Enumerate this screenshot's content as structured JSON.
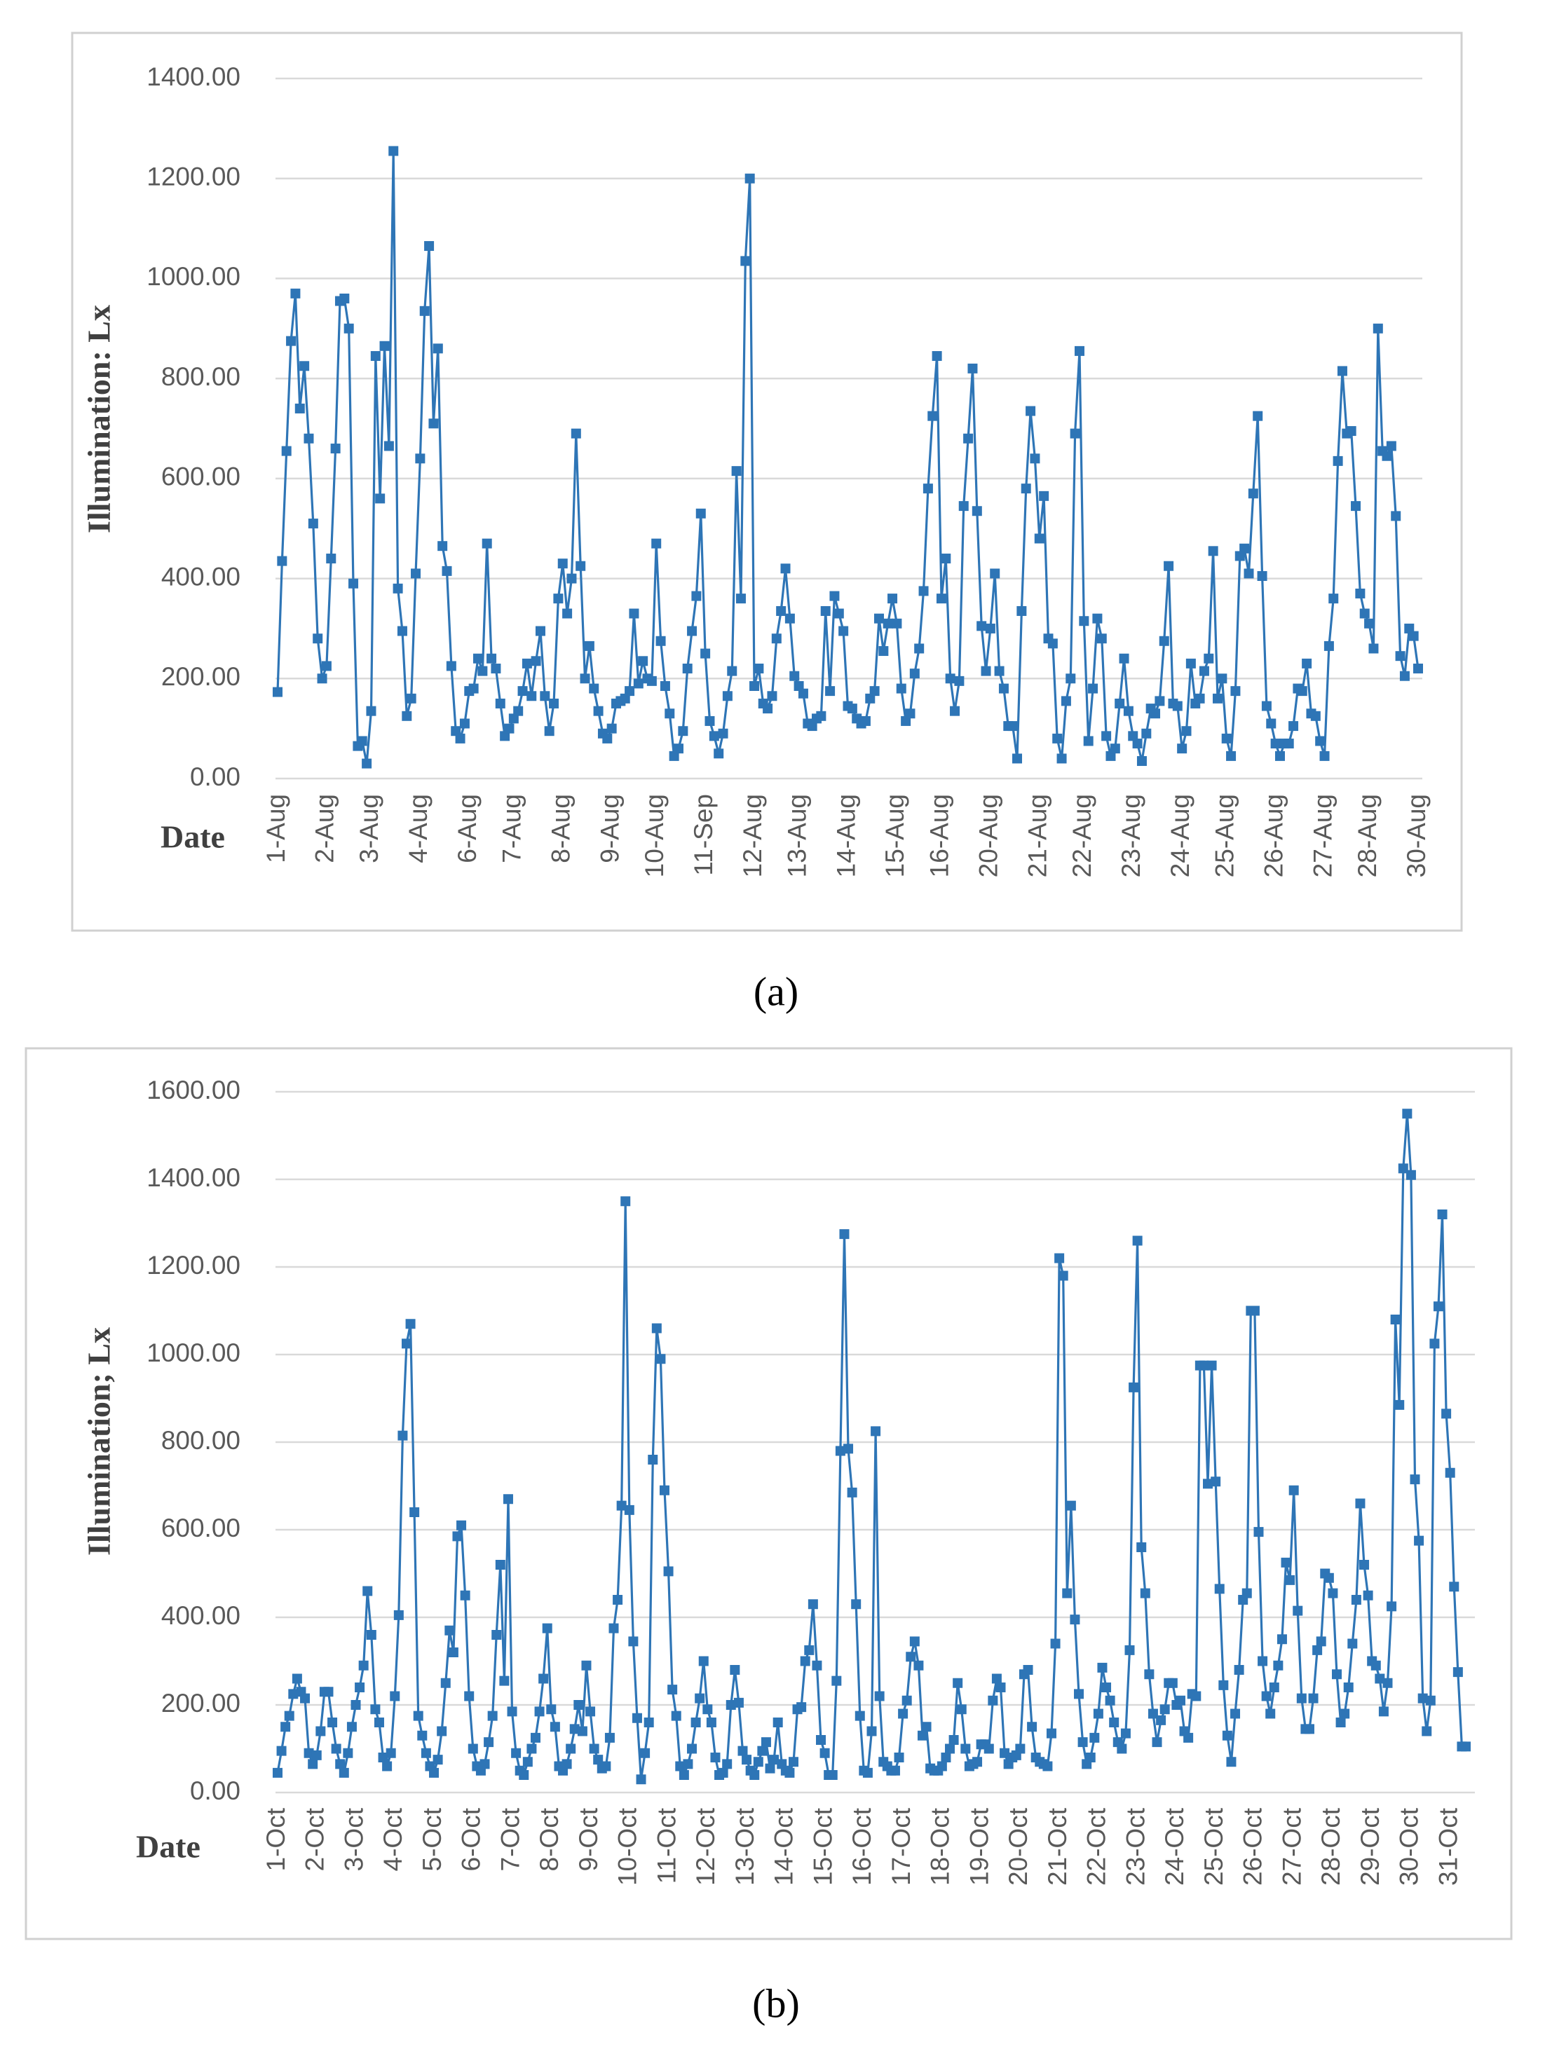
{
  "chart_data": [
    {
      "type": "line",
      "caption": "(a)",
      "ylabel": "Illumination:  Lx",
      "xlabel": "Date",
      "color": "#2e75b6",
      "grid": true,
      "ylim": [
        0,
        1400
      ],
      "yticks": [
        {
          "value": 0,
          "label": "0.00"
        },
        {
          "value": 200,
          "label": "200.00"
        },
        {
          "value": 400,
          "label": "400.00"
        },
        {
          "value": 600,
          "label": "600.00"
        },
        {
          "value": 800,
          "label": "800.00"
        },
        {
          "value": 1000,
          "label": "1000.00"
        },
        {
          "value": 1200,
          "label": "1200.00"
        },
        {
          "value": 1400,
          "label": "1400.00"
        }
      ],
      "categories": [
        "1-Aug",
        null,
        null,
        null,
        null,
        null,
        null,
        null,
        null,
        null,
        null,
        "2-Aug",
        null,
        null,
        null,
        null,
        null,
        null,
        null,
        null,
        null,
        "3-Aug",
        null,
        null,
        null,
        null,
        null,
        null,
        null,
        null,
        null,
        null,
        "4-Aug",
        null,
        null,
        null,
        null,
        null,
        null,
        null,
        null,
        null,
        null,
        "6-Aug",
        null,
        null,
        null,
        null,
        null,
        null,
        null,
        null,
        null,
        "7-Aug",
        null,
        null,
        null,
        null,
        null,
        null,
        null,
        null,
        null,
        null,
        "8-Aug",
        null,
        null,
        null,
        null,
        null,
        null,
        null,
        null,
        null,
        null,
        "9-Aug",
        null,
        null,
        null,
        null,
        null,
        null,
        null,
        null,
        null,
        "10-Aug",
        null,
        null,
        null,
        null,
        null,
        null,
        null,
        null,
        null,
        null,
        "11-Sep",
        null,
        null,
        null,
        null,
        null,
        null,
        null,
        null,
        null,
        null,
        "12-Aug",
        null,
        null,
        null,
        null,
        null,
        null,
        null,
        null,
        null,
        "13-Aug",
        null,
        null,
        null,
        null,
        null,
        null,
        null,
        null,
        null,
        null,
        "14-Aug",
        null,
        null,
        null,
        null,
        null,
        null,
        null,
        null,
        null,
        null,
        "15-Aug",
        null,
        null,
        null,
        null,
        null,
        null,
        null,
        null,
        null,
        "16-Aug",
        null,
        null,
        null,
        null,
        null,
        null,
        null,
        null,
        null,
        null,
        "20-Aug",
        null,
        null,
        null,
        null,
        null,
        null,
        null,
        null,
        null,
        null,
        "21-Aug",
        null,
        null,
        null,
        null,
        null,
        null,
        null,
        null,
        null,
        "22-Aug",
        null,
        null,
        null,
        null,
        null,
        null,
        null,
        null,
        null,
        null,
        "23-Aug",
        null,
        null,
        null,
        null,
        null,
        null,
        null,
        null,
        null,
        null,
        "24-Aug",
        null,
        null,
        null,
        null,
        null,
        null,
        null,
        null,
        null,
        "25-Aug",
        null,
        null,
        null,
        null,
        null,
        null,
        null,
        null,
        null,
        null,
        "26-Aug",
        null,
        null,
        null,
        null,
        null,
        null,
        null,
        null,
        null,
        null,
        "27-Aug",
        null,
        null,
        null,
        null,
        null,
        null,
        null,
        null,
        null,
        "28-Aug",
        null,
        null,
        null,
        null,
        null,
        null,
        null,
        null,
        null,
        null,
        "30-Aug"
      ],
      "values": [
        173,
        435,
        655,
        875,
        970,
        740,
        825,
        680,
        510,
        280,
        200,
        225,
        440,
        660,
        955,
        960,
        900,
        390,
        65,
        75,
        30,
        135,
        845,
        560,
        865,
        665,
        1255,
        380,
        295,
        125,
        160,
        410,
        640,
        935,
        1065,
        710,
        860,
        465,
        415,
        225,
        95,
        80,
        110,
        175,
        180,
        240,
        215,
        470,
        240,
        220,
        150,
        85,
        100,
        120,
        135,
        175,
        230,
        165,
        235,
        295,
        165,
        95,
        150,
        360,
        430,
        330,
        400,
        690,
        425,
        200,
        265,
        180,
        135,
        90,
        80,
        100,
        150,
        155,
        160,
        175,
        330,
        190,
        235,
        200,
        195,
        470,
        275,
        185,
        130,
        45,
        60,
        95,
        220,
        295,
        365,
        530,
        250,
        115,
        85,
        50,
        90,
        165,
        215,
        615,
        360,
        1035,
        1200,
        185,
        220,
        150,
        140,
        165,
        280,
        335,
        420,
        320,
        205,
        185,
        170,
        110,
        105,
        120,
        125,
        335,
        175,
        365,
        330,
        295,
        145,
        140,
        120,
        110,
        115,
        160,
        175,
        320,
        255,
        310,
        360,
        310,
        180,
        115,
        130,
        210,
        260,
        375,
        580,
        725,
        845,
        360,
        440,
        200,
        135,
        195,
        545,
        680,
        820,
        535,
        305,
        215,
        300,
        410,
        215,
        180,
        105,
        105,
        40,
        335,
        580,
        735,
        640,
        480,
        565,
        280,
        270,
        80,
        40,
        155,
        200,
        690,
        855,
        315,
        75,
        180,
        320,
        280,
        85,
        45,
        60,
        150,
        240,
        135,
        85,
        70,
        35,
        90,
        140,
        130,
        155,
        275,
        425,
        150,
        145,
        60,
        95,
        230,
        150,
        160,
        215,
        240,
        455,
        160,
        200,
        80,
        45,
        175,
        445,
        460,
        410,
        570,
        725,
        405,
        145,
        110,
        70,
        45,
        70,
        70,
        105,
        180,
        175,
        230,
        130,
        125,
        75,
        45,
        265,
        360,
        635,
        815,
        690,
        695,
        545,
        370,
        330,
        310,
        260,
        900,
        655,
        645,
        665,
        525,
        245,
        205,
        300,
        285,
        220
      ]
    },
    {
      "type": "line",
      "caption": "(b)",
      "ylabel": "Illumination; Lx",
      "xlabel": "Date",
      "color": "#2e75b6",
      "grid": true,
      "ylim": [
        0,
        1600
      ],
      "yticks": [
        {
          "value": 0,
          "label": "0.00"
        },
        {
          "value": 200,
          "label": "200.00"
        },
        {
          "value": 400,
          "label": "400.00"
        },
        {
          "value": 600,
          "label": "600.00"
        },
        {
          "value": 800,
          "label": "800.00"
        },
        {
          "value": 1000,
          "label": "1000.00"
        },
        {
          "value": 1200,
          "label": "1200.00"
        },
        {
          "value": 1400,
          "label": "1400.00"
        },
        {
          "value": 1600,
          "label": "1600.00"
        }
      ],
      "categories": [
        "1-Oct",
        null,
        null,
        null,
        null,
        null,
        null,
        null,
        null,
        null,
        "2-Oct",
        null,
        null,
        null,
        null,
        null,
        null,
        null,
        null,
        null,
        "3-Oct",
        null,
        null,
        null,
        null,
        null,
        null,
        null,
        null,
        null,
        "4-Oct",
        null,
        null,
        null,
        null,
        null,
        null,
        null,
        null,
        null,
        "5-Oct",
        null,
        null,
        null,
        null,
        null,
        null,
        null,
        null,
        null,
        "6-Oct",
        null,
        null,
        null,
        null,
        null,
        null,
        null,
        null,
        null,
        "7-Oct",
        null,
        null,
        null,
        null,
        null,
        null,
        null,
        null,
        null,
        "8-Oct",
        null,
        null,
        null,
        null,
        null,
        null,
        null,
        null,
        null,
        "9-Oct",
        null,
        null,
        null,
        null,
        null,
        null,
        null,
        null,
        null,
        "10-Oct",
        null,
        null,
        null,
        null,
        null,
        null,
        null,
        null,
        null,
        "11-Oct",
        null,
        null,
        null,
        null,
        null,
        null,
        null,
        null,
        null,
        "12-Oct",
        null,
        null,
        null,
        null,
        null,
        null,
        null,
        null,
        null,
        "13-Oct",
        null,
        null,
        null,
        null,
        null,
        null,
        null,
        null,
        null,
        "14-Oct",
        null,
        null,
        null,
        null,
        null,
        null,
        null,
        null,
        null,
        "15-Oct",
        null,
        null,
        null,
        null,
        null,
        null,
        null,
        null,
        null,
        "16-Oct",
        null,
        null,
        null,
        null,
        null,
        null,
        null,
        null,
        null,
        "17-Oct",
        null,
        null,
        null,
        null,
        null,
        null,
        null,
        null,
        null,
        "18-Oct",
        null,
        null,
        null,
        null,
        null,
        null,
        null,
        null,
        null,
        "19-Oct",
        null,
        null,
        null,
        null,
        null,
        null,
        null,
        null,
        null,
        "20-Oct",
        null,
        null,
        null,
        null,
        null,
        null,
        null,
        null,
        null,
        "21-Oct",
        null,
        null,
        null,
        null,
        null,
        null,
        null,
        null,
        null,
        "22-Oct",
        null,
        null,
        null,
        null,
        null,
        null,
        null,
        null,
        null,
        "23-Oct",
        null,
        null,
        null,
        null,
        null,
        null,
        null,
        null,
        null,
        "24-Oct",
        null,
        null,
        null,
        null,
        null,
        null,
        null,
        null,
        null,
        "25-Oct",
        null,
        null,
        null,
        null,
        null,
        null,
        null,
        null,
        null,
        "26-Oct",
        null,
        null,
        null,
        null,
        null,
        null,
        null,
        null,
        null,
        "27-Oct",
        null,
        null,
        null,
        null,
        null,
        null,
        null,
        null,
        null,
        "28-Oct",
        null,
        null,
        null,
        null,
        null,
        null,
        null,
        null,
        null,
        "29-Oct",
        null,
        null,
        null,
        null,
        null,
        null,
        null,
        null,
        null,
        "30-Oct",
        null,
        null,
        null,
        null,
        null,
        null,
        null,
        null,
        null,
        "31-Oct",
        null,
        null,
        null,
        null
      ],
      "values": [
        45,
        95,
        150,
        175,
        225,
        260,
        230,
        215,
        90,
        65,
        85,
        140,
        230,
        230,
        160,
        100,
        65,
        45,
        90,
        150,
        200,
        240,
        290,
        460,
        360,
        190,
        160,
        80,
        60,
        90,
        220,
        405,
        815,
        1025,
        1070,
        640,
        175,
        130,
        90,
        60,
        45,
        75,
        140,
        250,
        370,
        320,
        585,
        610,
        450,
        220,
        100,
        60,
        50,
        65,
        115,
        175,
        360,
        520,
        255,
        670,
        185,
        90,
        50,
        40,
        70,
        100,
        125,
        185,
        260,
        375,
        190,
        150,
        60,
        50,
        65,
        100,
        145,
        200,
        140,
        290,
        185,
        100,
        75,
        55,
        60,
        125,
        375,
        440,
        655,
        1350,
        645,
        345,
        170,
        30,
        90,
        160,
        760,
        1060,
        990,
        690,
        505,
        235,
        175,
        60,
        40,
        65,
        100,
        160,
        215,
        300,
        190,
        160,
        80,
        40,
        45,
        65,
        200,
        280,
        205,
        95,
        75,
        50,
        40,
        70,
        95,
        115,
        55,
        75,
        160,
        65,
        50,
        45,
        70,
        190,
        195,
        300,
        325,
        430,
        290,
        120,
        90,
        40,
        40,
        255,
        780,
        1275,
        785,
        685,
        430,
        175,
        50,
        45,
        140,
        825,
        220,
        70,
        60,
        50,
        50,
        80,
        180,
        210,
        310,
        345,
        290,
        130,
        150,
        55,
        50,
        50,
        60,
        80,
        100,
        120,
        250,
        190,
        100,
        60,
        65,
        70,
        110,
        110,
        100,
        210,
        260,
        240,
        90,
        65,
        80,
        85,
        100,
        270,
        280,
        150,
        80,
        70,
        65,
        60,
        135,
        340,
        1220,
        1180,
        455,
        655,
        395,
        225,
        115,
        65,
        80,
        125,
        180,
        285,
        240,
        210,
        160,
        115,
        100,
        135,
        325,
        925,
        1260,
        560,
        455,
        270,
        180,
        115,
        165,
        190,
        250,
        250,
        200,
        210,
        140,
        125,
        225,
        220,
        975,
        975,
        705,
        975,
        710,
        465,
        245,
        130,
        70,
        180,
        280,
        440,
        455,
        1100,
        1100,
        595,
        300,
        220,
        180,
        240,
        290,
        350,
        525,
        485,
        690,
        415,
        215,
        145,
        145,
        215,
        325,
        345,
        500,
        490,
        455,
        270,
        160,
        180,
        240,
        340,
        440,
        660,
        520,
        450,
        300,
        290,
        260,
        185,
        250,
        425,
        1080,
        885,
        1425,
        1550,
        1410,
        715,
        575,
        215,
        140,
        210,
        1025,
        1110,
        1320,
        865,
        730,
        470,
        275,
        105,
        105
      ]
    }
  ]
}
